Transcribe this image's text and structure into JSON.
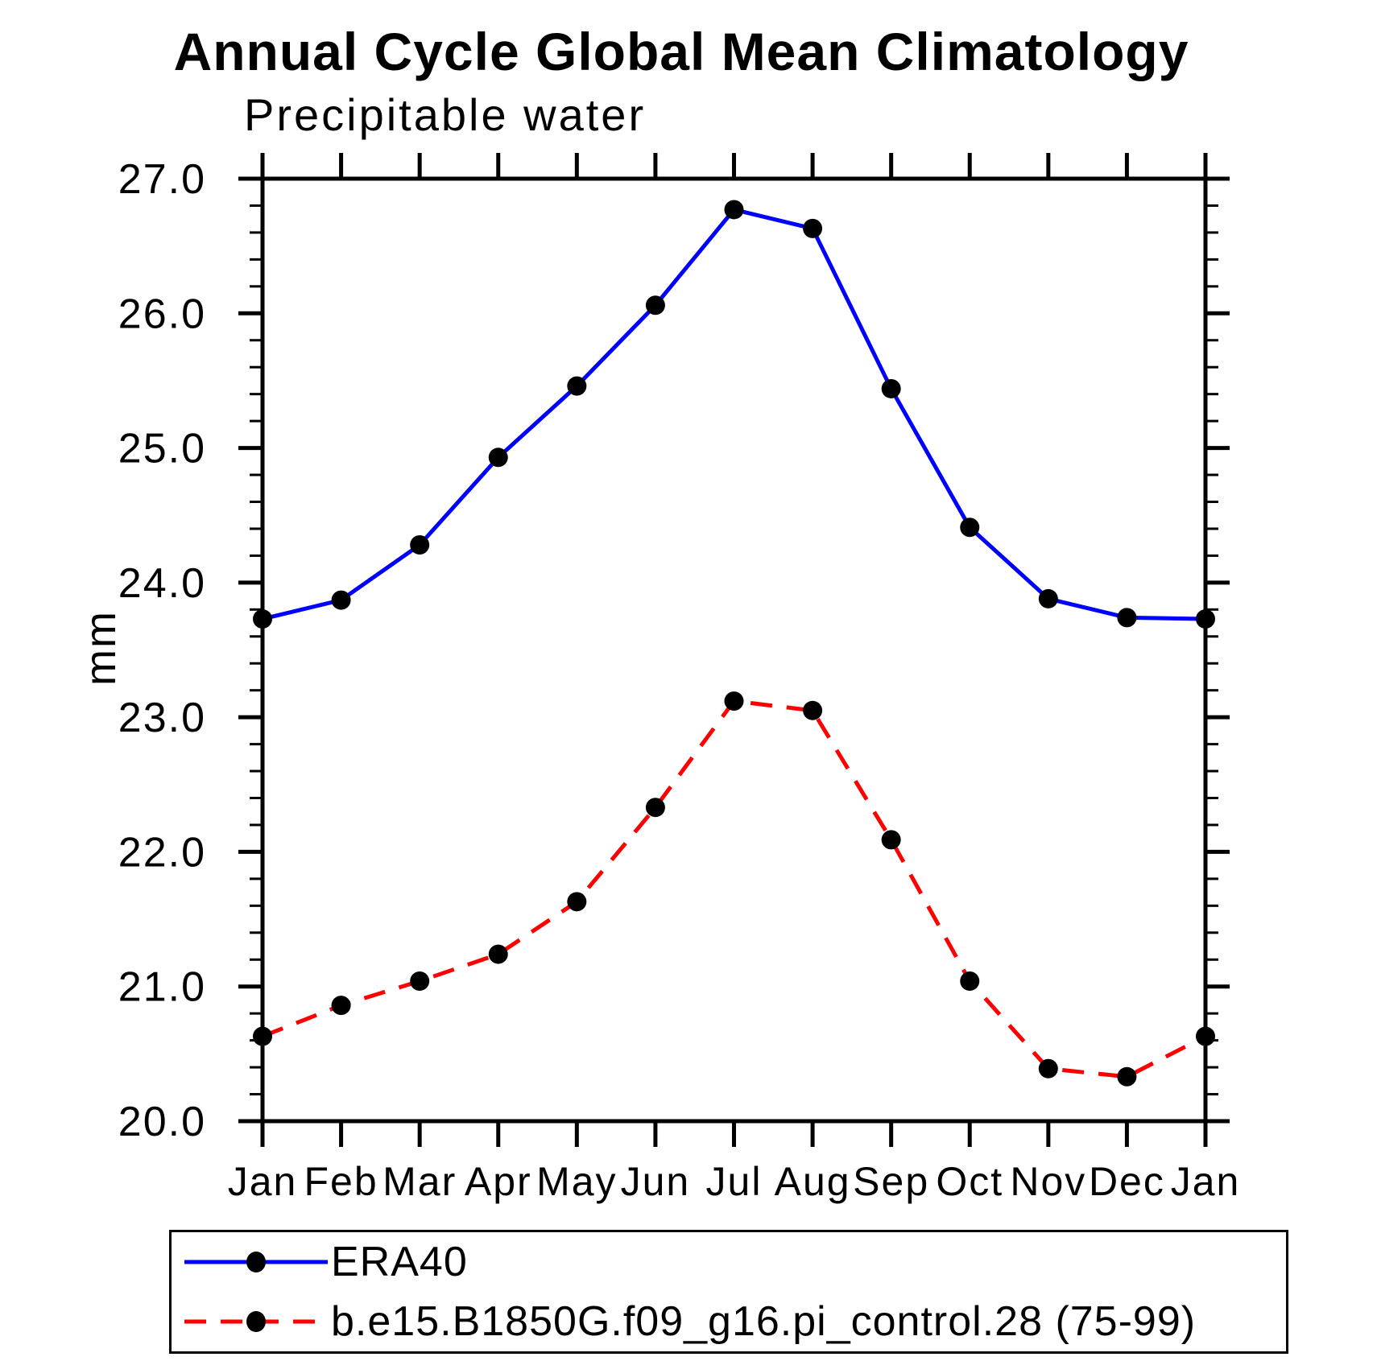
{
  "chart": {
    "title": "Annual Cycle Global Mean Climatology",
    "subtitle": "Precipitable water",
    "ylabel": "mm",
    "colors": {
      "era40_line": "#0000ff",
      "model_line": "#ff0000",
      "marker": "#000000",
      "axis": "#000000",
      "background": "#ffffff"
    }
  },
  "chart_data": {
    "type": "line",
    "title": "Annual Cycle Global Mean Climatology",
    "subtitle": "Precipitable water",
    "xlabel": "",
    "ylabel": "mm",
    "categories": [
      "Jan",
      "Feb",
      "Mar",
      "Apr",
      "May",
      "Jun",
      "Jul",
      "Aug",
      "Sep",
      "Oct",
      "Nov",
      "Dec",
      "Jan"
    ],
    "ylim": [
      20.0,
      27.0
    ],
    "ytick_major_step": 1.0,
    "ytick_minor_step": 0.2,
    "ytick_labels": [
      "20.0",
      "21.0",
      "22.0",
      "23.0",
      "24.0",
      "25.0",
      "26.0",
      "27.0"
    ],
    "grid": false,
    "legend_position": "bottom",
    "series": [
      {
        "name": "ERA40",
        "color": "#0000ff",
        "line_style": "solid",
        "marker": "circle",
        "marker_color": "#000000",
        "values": [
          23.73,
          23.87,
          24.28,
          24.93,
          25.46,
          26.06,
          26.77,
          26.63,
          25.44,
          24.41,
          23.88,
          23.74,
          23.73
        ]
      },
      {
        "name": "b.e15.B1850G.f09_g16.pi_control.28 (75-99)",
        "color": "#ff0000",
        "line_style": "dashed",
        "marker": "circle",
        "marker_color": "#000000",
        "values": [
          20.63,
          20.86,
          21.04,
          21.24,
          21.63,
          22.33,
          23.12,
          23.05,
          22.09,
          21.04,
          20.39,
          20.33,
          20.63
        ]
      }
    ]
  }
}
